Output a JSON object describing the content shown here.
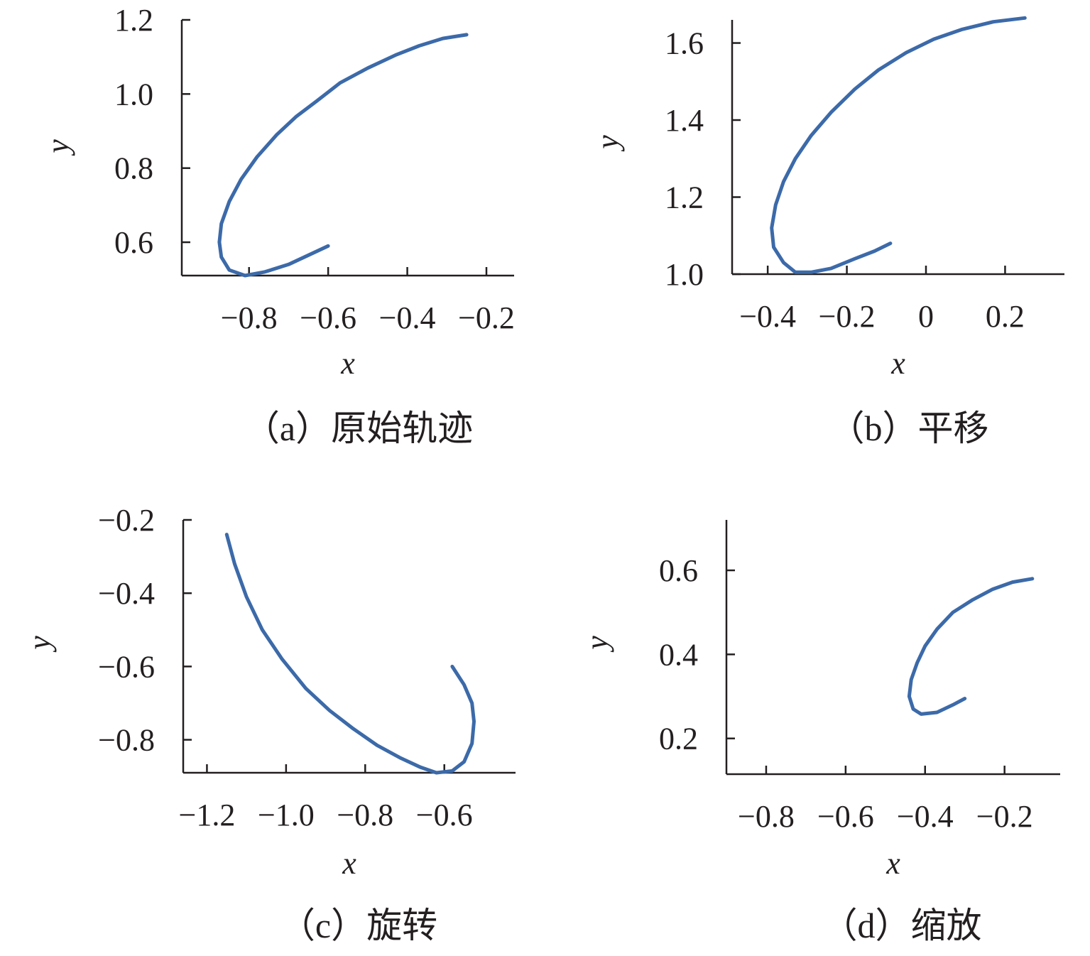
{
  "colors": {
    "series": "#3c6aa9",
    "axis": "#231f20"
  },
  "chart_data": [
    {
      "type": "line",
      "caption": "（a）原始轨迹",
      "xlabel": "x",
      "ylabel": "y",
      "xlim": [
        -0.97,
        -0.13
      ],
      "ylim": [
        0.51,
        1.2
      ],
      "xticks": [
        -0.8,
        -0.6,
        -0.4,
        -0.2
      ],
      "xtick_labels": [
        "−0.8",
        "−0.6",
        "−0.4",
        "−0.2"
      ],
      "yticks": [
        0.6,
        0.8,
        1.0,
        1.2
      ],
      "ytick_labels": [
        "0.6",
        "0.8",
        "1.0",
        "1.2"
      ],
      "grid": false,
      "series": [
        {
          "x": [
            -0.6,
            -0.64,
            -0.7,
            -0.76,
            -0.81,
            -0.85,
            -0.87,
            -0.875,
            -0.87,
            -0.85,
            -0.82,
            -0.78,
            -0.73,
            -0.68,
            -0.63,
            -0.57,
            -0.5,
            -0.43,
            -0.37,
            -0.31,
            -0.25
          ],
          "y": [
            0.59,
            0.57,
            0.54,
            0.52,
            0.51,
            0.525,
            0.56,
            0.6,
            0.65,
            0.71,
            0.77,
            0.83,
            0.89,
            0.94,
            0.98,
            1.03,
            1.07,
            1.105,
            1.13,
            1.15,
            1.16
          ]
        }
      ]
    },
    {
      "type": "line",
      "caption": "（b）平移",
      "xlabel": "x",
      "ylabel": "y",
      "xlim": [
        -0.49,
        0.35
      ],
      "ylim": [
        1.0,
        1.66
      ],
      "xticks": [
        -0.4,
        -0.2,
        0,
        0.2
      ],
      "xtick_labels": [
        "−0.4",
        "−0.2",
        "0",
        "0.2"
      ],
      "yticks": [
        1.0,
        1.2,
        1.4,
        1.6
      ],
      "ytick_labels": [
        "1.0",
        "1.2",
        "1.4",
        "1.6"
      ],
      "grid": false,
      "series": [
        {
          "x": [
            -0.09,
            -0.13,
            -0.18,
            -0.24,
            -0.29,
            -0.33,
            -0.36,
            -0.385,
            -0.39,
            -0.38,
            -0.36,
            -0.33,
            -0.29,
            -0.24,
            -0.18,
            -0.12,
            -0.05,
            0.02,
            0.09,
            0.17,
            0.25
          ],
          "y": [
            1.08,
            1.06,
            1.04,
            1.015,
            1.005,
            1.005,
            1.03,
            1.07,
            1.12,
            1.18,
            1.24,
            1.3,
            1.36,
            1.42,
            1.48,
            1.53,
            1.575,
            1.61,
            1.635,
            1.655,
            1.665
          ]
        }
      ]
    },
    {
      "type": "line",
      "caption": "（c）旋转",
      "xlabel": "x",
      "ylabel": "y",
      "xlim": [
        -1.26,
        -0.42
      ],
      "ylim": [
        -0.89,
        -0.2
      ],
      "xticks": [
        -1.2,
        -1.0,
        -0.8,
        -0.6
      ],
      "xtick_labels": [
        "−1.2",
        "−1.0",
        "−0.8",
        "−0.6"
      ],
      "yticks": [
        -0.2,
        -0.4,
        -0.6,
        -0.8
      ],
      "ytick_labels": [
        "−0.2",
        "−0.4",
        "−0.6",
        "−0.8"
      ],
      "grid": false,
      "series": [
        {
          "x": [
            -1.15,
            -1.13,
            -1.1,
            -1.06,
            -1.01,
            -0.95,
            -0.89,
            -0.83,
            -0.77,
            -0.71,
            -0.66,
            -0.62,
            -0.58,
            -0.55,
            -0.53,
            -0.525,
            -0.53,
            -0.55,
            -0.58
          ],
          "y": [
            -0.24,
            -0.32,
            -0.41,
            -0.5,
            -0.58,
            -0.66,
            -0.72,
            -0.77,
            -0.815,
            -0.85,
            -0.875,
            -0.89,
            -0.885,
            -0.86,
            -0.81,
            -0.75,
            -0.7,
            -0.65,
            -0.6
          ]
        }
      ]
    },
    {
      "type": "line",
      "caption": "（d）缩放",
      "xlabel": "x",
      "ylabel": "y",
      "xlim": [
        -0.9,
        -0.06
      ],
      "ylim": [
        0.115,
        0.72
      ],
      "xticks": [
        -0.8,
        -0.6,
        -0.4,
        -0.2
      ],
      "xtick_labels": [
        "−0.8",
        "−0.6",
        "−0.4",
        "−0.2"
      ],
      "yticks": [
        0.2,
        0.4,
        0.6
      ],
      "ytick_labels": [
        "0.2",
        "0.4",
        "0.6"
      ],
      "grid": false,
      "series": [
        {
          "x": [
            -0.3,
            -0.33,
            -0.37,
            -0.41,
            -0.43,
            -0.44,
            -0.435,
            -0.42,
            -0.4,
            -0.37,
            -0.33,
            -0.28,
            -0.23,
            -0.18,
            -0.13
          ],
          "y": [
            0.295,
            0.28,
            0.262,
            0.258,
            0.27,
            0.3,
            0.34,
            0.38,
            0.42,
            0.46,
            0.5,
            0.53,
            0.555,
            0.572,
            0.58
          ]
        }
      ]
    }
  ]
}
